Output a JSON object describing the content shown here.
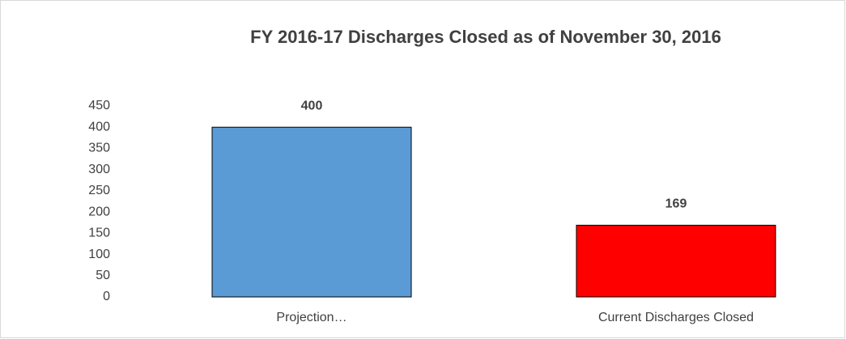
{
  "chart_data": {
    "type": "bar",
    "title": "FY 2016-17 Discharges Closed as of November 30, 2016",
    "categories": [
      "Projection…",
      "Current Discharges Closed"
    ],
    "values": [
      400,
      169
    ],
    "colors": [
      "#5b9bd5",
      "#ff0000"
    ],
    "ylim": [
      0,
      450
    ],
    "yticks": [
      0,
      50,
      100,
      150,
      200,
      250,
      300,
      350,
      400,
      450
    ],
    "grid": false
  }
}
